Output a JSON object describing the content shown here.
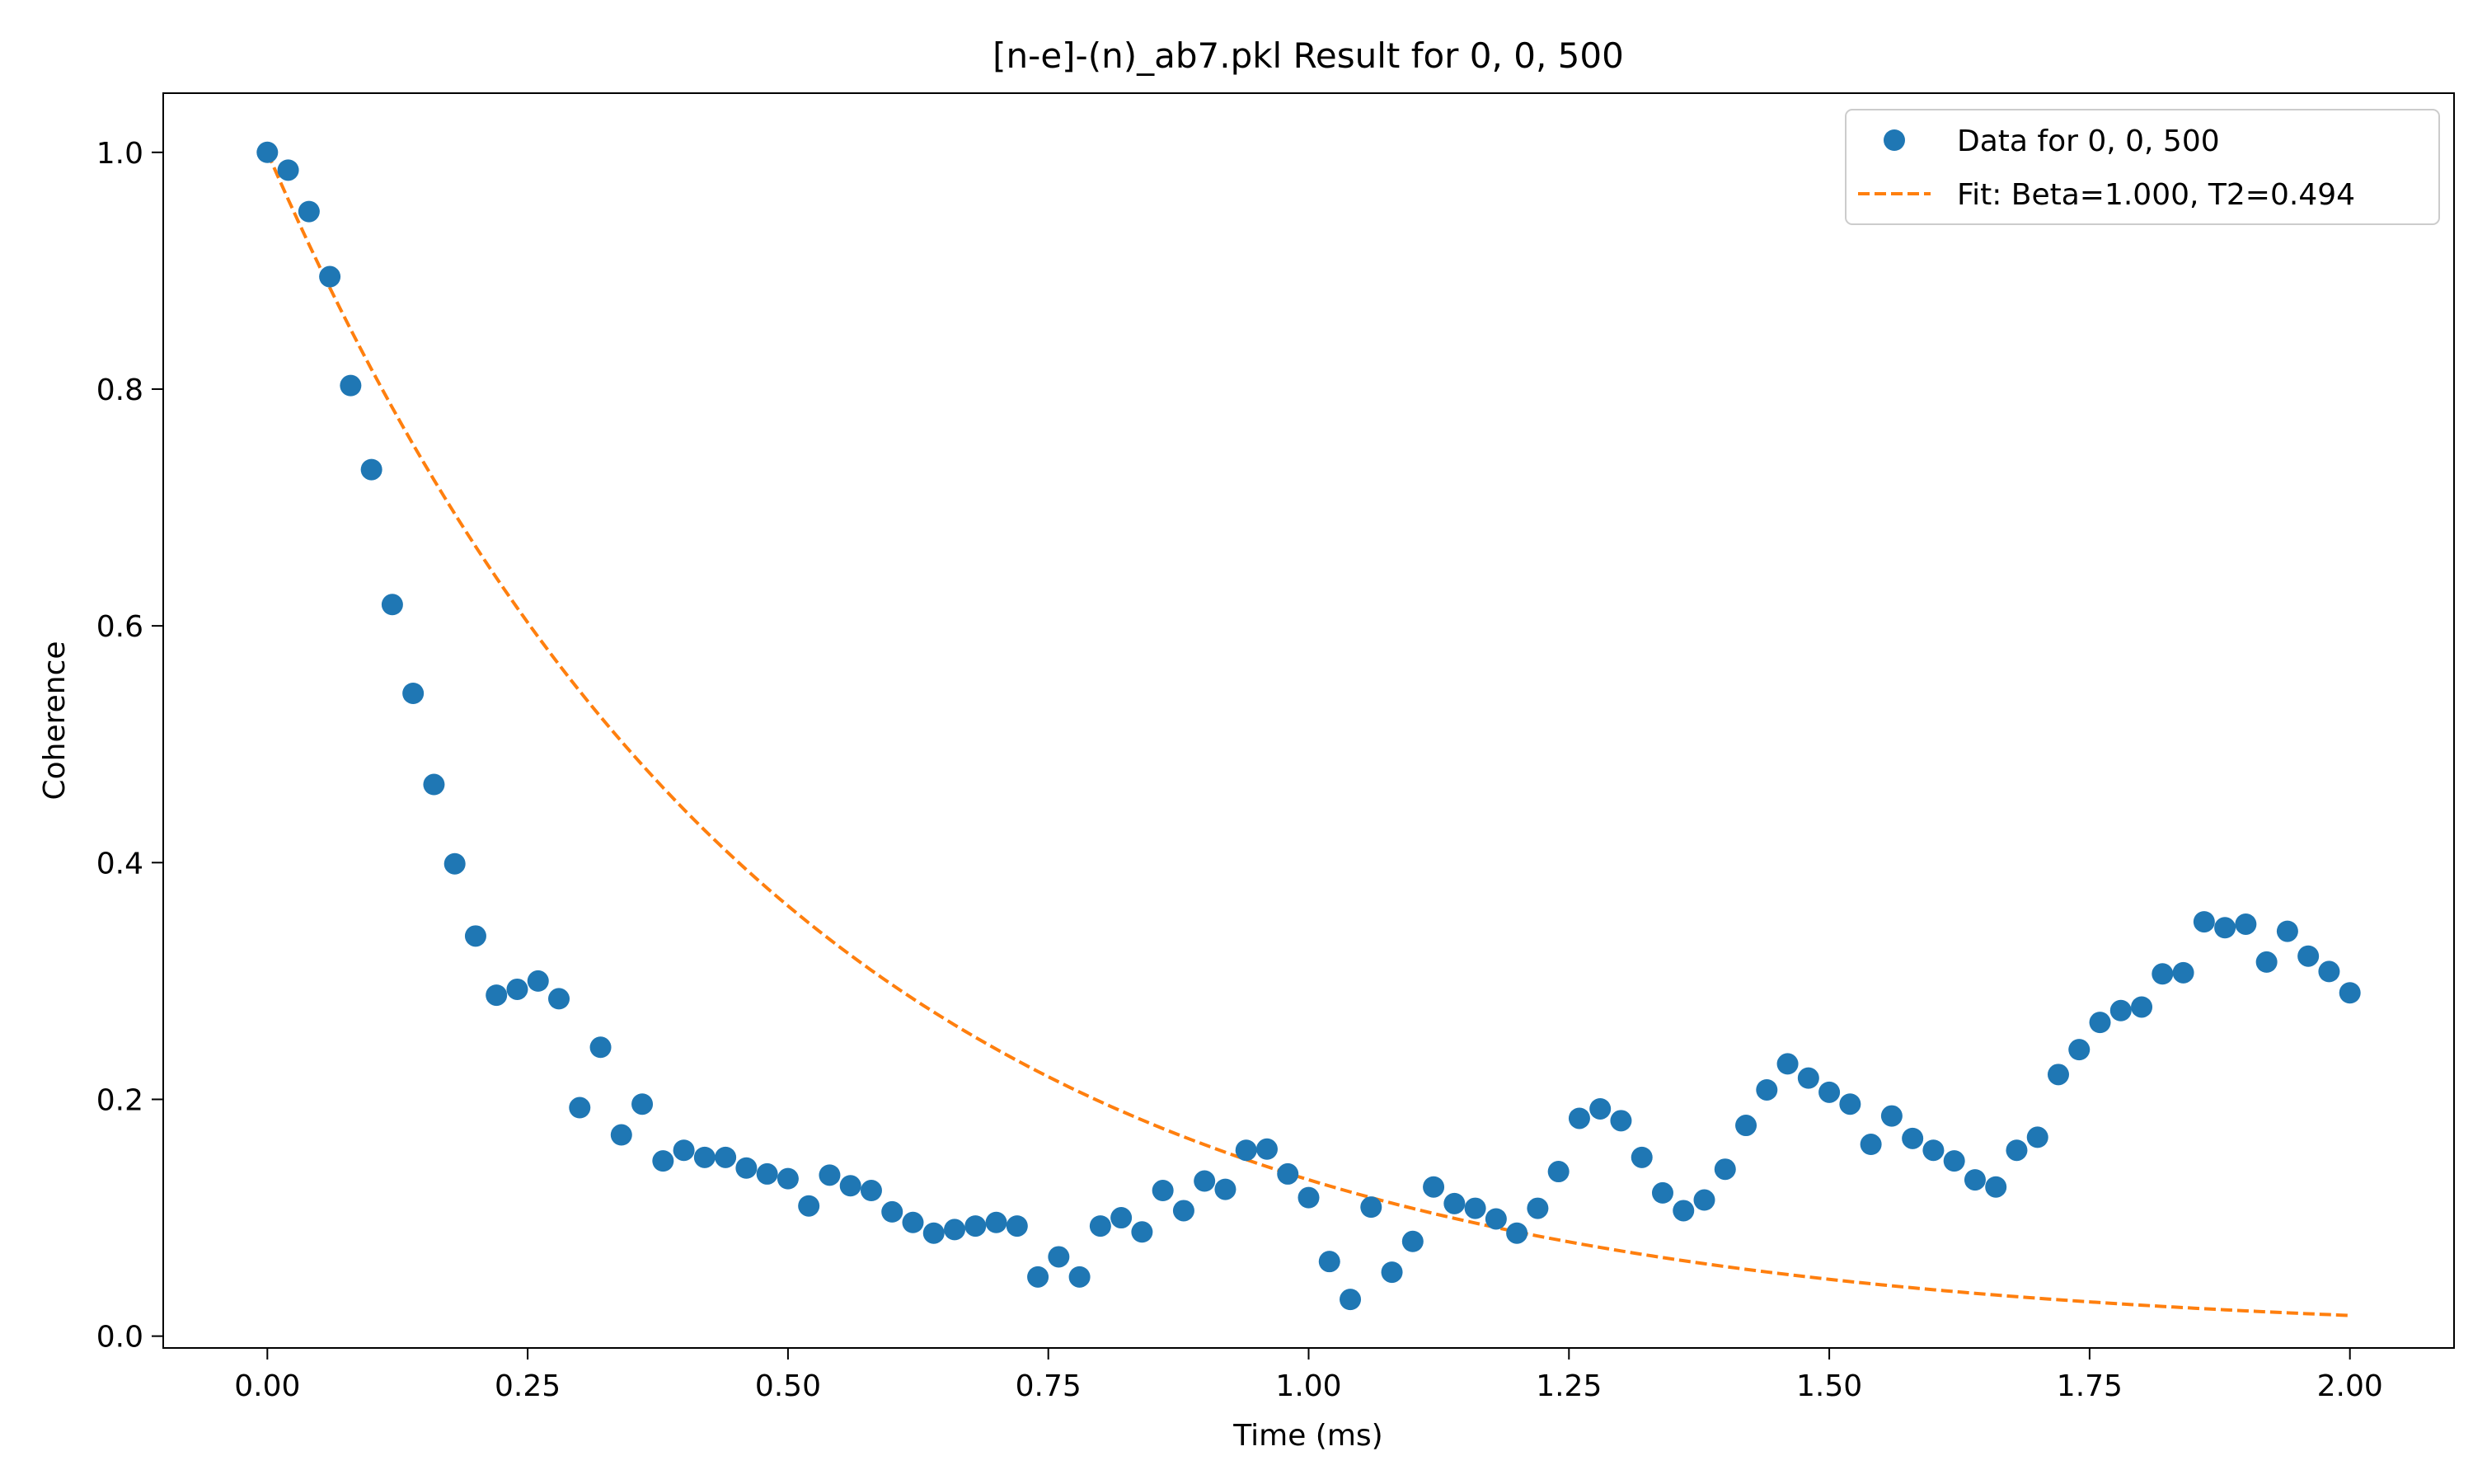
{
  "chart_data": {
    "type": "scatter",
    "title": "[n-e]-(n)_ab7.pkl Result for 0, 0, 500",
    "xlabel": "Time (ms)",
    "ylabel": "Coherence",
    "xlim": [
      -0.1,
      2.1
    ],
    "ylim": [
      -0.01,
      1.05
    ],
    "xticks": [
      0.0,
      0.25,
      0.5,
      0.75,
      1.0,
      1.25,
      1.5,
      1.75,
      2.0
    ],
    "xtick_labels": [
      "0.00",
      "0.25",
      "0.50",
      "0.75",
      "1.00",
      "1.25",
      "1.50",
      "1.75",
      "2.00"
    ],
    "yticks": [
      0.0,
      0.2,
      0.4,
      0.6,
      0.8,
      1.0
    ],
    "ytick_labels": [
      "0.0",
      "0.2",
      "0.4",
      "0.6",
      "0.8",
      "1.0"
    ],
    "grid": false,
    "legend_position": "top-right",
    "series": [
      {
        "name": "Data for 0, 0, 500",
        "kind": "scatter",
        "color": "#1f77b4",
        "x": [
          0.0,
          0.02,
          0.04,
          0.06,
          0.08,
          0.1,
          0.12,
          0.14,
          0.16,
          0.18,
          0.2,
          0.22,
          0.24,
          0.26,
          0.28,
          0.3,
          0.32,
          0.34,
          0.36,
          0.38,
          0.4,
          0.42,
          0.44,
          0.46,
          0.48,
          0.5,
          0.52,
          0.54,
          0.56,
          0.58,
          0.6,
          0.62,
          0.64,
          0.66,
          0.68,
          0.7,
          0.72,
          0.74,
          0.76,
          0.78,
          0.8,
          0.82,
          0.84,
          0.86,
          0.88,
          0.9,
          0.92,
          0.94,
          0.96,
          0.98,
          1.0,
          1.02,
          1.04,
          1.06,
          1.08,
          1.1,
          1.12,
          1.14,
          1.16,
          1.18,
          1.2,
          1.22,
          1.24,
          1.26,
          1.28,
          1.3,
          1.32,
          1.34,
          1.36,
          1.38,
          1.4,
          1.42,
          1.44,
          1.46,
          1.48,
          1.5,
          1.52,
          1.54,
          1.56,
          1.58,
          1.6,
          1.62,
          1.64,
          1.66,
          1.68,
          1.7,
          1.72,
          1.74,
          1.76,
          1.78,
          1.8,
          1.82,
          1.84,
          1.86,
          1.88,
          1.9,
          1.92,
          1.94,
          1.96,
          1.98,
          2.0
        ],
        "y": [
          1.0,
          0.985,
          0.95,
          0.895,
          0.803,
          0.732,
          0.618,
          0.543,
          0.466,
          0.399,
          0.338,
          0.288,
          0.293,
          0.3,
          0.285,
          0.193,
          0.244,
          0.17,
          0.196,
          0.148,
          0.157,
          0.151,
          0.151,
          0.142,
          0.137,
          0.133,
          0.11,
          0.136,
          0.127,
          0.123,
          0.105,
          0.096,
          0.087,
          0.09,
          0.093,
          0.096,
          0.093,
          0.05,
          0.067,
          0.05,
          0.093,
          0.1,
          0.088,
          0.123,
          0.106,
          0.131,
          0.124,
          0.157,
          0.158,
          0.137,
          0.117,
          0.063,
          0.031,
          0.109,
          0.054,
          0.08,
          0.126,
          0.112,
          0.108,
          0.099,
          0.087,
          0.108,
          0.139,
          0.184,
          0.192,
          0.182,
          0.151,
          0.121,
          0.106,
          0.115,
          0.141,
          0.178,
          0.208,
          0.23,
          0.218,
          0.206,
          0.196,
          0.162,
          0.186,
          0.167,
          0.157,
          0.148,
          0.132,
          0.126,
          0.157,
          0.168,
          0.221,
          0.242,
          0.265,
          0.275,
          0.278,
          0.306,
          0.307,
          0.35,
          0.345,
          0.348,
          0.316,
          0.342,
          0.321,
          0.308,
          0.29
        ]
      },
      {
        "name": "Fit: Beta=1.000, T2=0.494",
        "kind": "line",
        "style": "dashed",
        "color": "#ff7f0e",
        "function": "exp(-(x/T2)^Beta)",
        "beta": 1.0,
        "t2": 0.494,
        "x_range": [
          0.0,
          2.0
        ]
      }
    ]
  }
}
